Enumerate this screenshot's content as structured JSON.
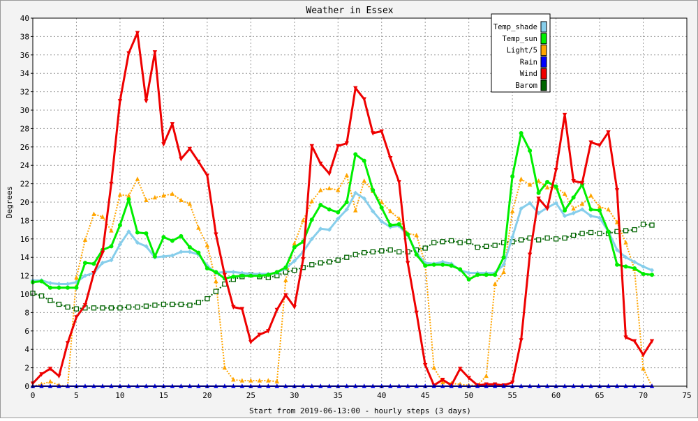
{
  "chart_data": {
    "type": "line",
    "title": "Weather in Essex",
    "xlabel": "Start from 2019-06-13:00 - hourly steps (3 days)",
    "ylabel": "Degrees",
    "xlim": [
      0,
      75
    ],
    "ylim": [
      0,
      40
    ],
    "xticks": [
      "0",
      "5",
      "10",
      "15",
      "20",
      "25",
      "30",
      "35",
      "40",
      "45",
      "50",
      "55",
      "60",
      "65",
      "70",
      "75"
    ],
    "yticks": [
      "0",
      "2",
      "4",
      "6",
      "8",
      "10",
      "12",
      "14",
      "16",
      "18",
      "20",
      "22",
      "24",
      "26",
      "28",
      "30",
      "32",
      "34",
      "36",
      "38",
      "40"
    ],
    "grid": true,
    "legend_position": "top-right",
    "series": [
      {
        "name": "Temp_shade",
        "color": "#87ceeb",
        "marker": "diamond",
        "dash": "solid",
        "width": 3,
        "values": [
          11.5,
          11.5,
          11.2,
          11.1,
          11.1,
          11.3,
          12.0,
          12.3,
          13.4,
          13.7,
          15.4,
          16.8,
          15.6,
          15.2,
          14.0,
          14.1,
          14.2,
          14.6,
          14.6,
          14.3,
          13.1,
          12.3,
          12.4,
          12.4,
          12.3,
          12.2,
          12.2,
          12.2,
          12.3,
          12.8,
          13.6,
          14.6,
          16.0,
          17.1,
          17.0,
          18.2,
          19.2,
          21.0,
          20.4,
          19.0,
          17.9,
          17.3,
          17.4,
          16.4,
          14.5,
          13.4,
          13.3,
          13.5,
          13.3,
          12.6,
          12.3,
          12.3,
          12.3,
          12.3,
          13.2,
          16.2,
          19.3,
          19.9,
          18.8,
          19.4,
          19.9,
          18.5,
          18.8,
          19.2,
          18.5,
          18.3,
          16.8,
          14.8,
          14.0,
          13.5,
          13.0,
          12.6
        ]
      },
      {
        "name": "Temp_sun",
        "color": "#00ee00",
        "marker": "circle",
        "dash": "solid",
        "width": 3,
        "values": [
          11.3,
          11.4,
          10.7,
          10.7,
          10.7,
          10.7,
          13.4,
          13.3,
          14.8,
          15.2,
          17.5,
          20.3,
          16.7,
          16.6,
          14.1,
          16.2,
          15.8,
          16.3,
          15.1,
          14.5,
          12.8,
          12.4,
          11.7,
          11.9,
          12.0,
          12.0,
          12.0,
          12.1,
          12.4,
          12.9,
          15.1,
          15.7,
          18.1,
          19.7,
          19.2,
          18.9,
          20.0,
          25.2,
          24.5,
          21.3,
          19.4,
          17.5,
          17.6,
          16.5,
          14.3,
          13.1,
          13.2,
          13.2,
          13.1,
          12.7,
          11.6,
          12.1,
          12.1,
          12.1,
          14.0,
          22.8,
          27.5,
          25.6,
          21.0,
          22.2,
          21.7,
          19.1,
          20.5,
          21.9,
          19.2,
          19.1,
          16.8,
          13.2,
          13.0,
          12.8,
          12.2,
          12.1
        ]
      },
      {
        "name": "Light/5",
        "color": "#ffa500",
        "marker": "triangle-up",
        "dash": "dotted",
        "width": 2,
        "values": [
          0.0,
          0.2,
          0.5,
          0.1,
          0.0,
          11.8,
          15.9,
          18.7,
          18.4,
          16.9,
          20.8,
          20.7,
          22.5,
          20.2,
          20.5,
          20.7,
          20.9,
          20.2,
          19.8,
          17.2,
          15.3,
          11.4,
          2.0,
          0.7,
          0.6,
          0.6,
          0.6,
          0.6,
          0.5,
          11.5,
          15.5,
          18.0,
          20.1,
          21.3,
          21.5,
          21.3,
          22.9,
          19.1,
          22.3,
          21.2,
          20.0,
          19.0,
          18.2,
          16.6,
          16.4,
          13.3,
          2.0,
          0.4,
          0.3,
          0.2,
          0.1,
          0.1,
          1.1,
          11.1,
          12.4,
          19.0,
          22.5,
          21.9,
          22.3,
          21.6,
          21.6,
          20.9,
          19.3,
          19.8,
          20.7,
          19.5,
          19.2,
          17.8,
          15.6,
          12.7,
          1.9,
          0.0
        ]
      },
      {
        "name": "Rain",
        "color": "#0000ff",
        "marker": "triangle-up",
        "dash": "solid",
        "width": 2,
        "values": [
          0,
          0,
          0,
          0,
          0,
          0,
          0,
          0,
          0,
          0,
          0,
          0,
          0,
          0,
          0,
          0,
          0,
          0,
          0,
          0,
          0,
          0,
          0,
          0,
          0,
          0,
          0,
          0,
          0,
          0,
          0,
          0,
          0,
          0,
          0,
          0,
          0,
          0,
          0,
          0,
          0,
          0,
          0,
          0,
          0,
          0,
          0,
          0,
          0,
          0,
          0,
          0,
          0,
          0,
          0,
          0,
          0,
          0,
          0,
          0,
          0,
          0,
          0,
          0,
          0,
          0,
          0,
          0,
          0,
          0,
          0,
          0
        ]
      },
      {
        "name": "Wind",
        "color": "#ee0000",
        "marker": "triangle-down",
        "dash": "solid",
        "width": 3,
        "values": [
          0.3,
          1.3,
          1.9,
          1.1,
          4.7,
          7.5,
          8.8,
          12.3,
          14.5,
          22.0,
          31.0,
          36.2,
          38.4,
          31.0,
          36.3,
          26.3,
          28.5,
          24.7,
          25.8,
          24.4,
          22.9,
          16.5,
          12.1,
          8.6,
          8.4,
          4.8,
          5.6,
          6.0,
          8.3,
          9.9,
          8.6,
          13.8,
          26.1,
          24.2,
          23.1,
          26.1,
          26.4,
          32.4,
          31.2,
          27.5,
          27.7,
          24.8,
          22.2,
          13.4,
          8.0,
          2.3,
          0.1,
          0.7,
          0.1,
          1.9,
          0.9,
          0.1,
          0.2,
          0.2,
          0.1,
          0.4,
          5.0,
          14.3,
          20.4,
          19.3,
          23.5,
          29.5,
          22.3,
          22.1,
          26.5,
          26.2,
          27.6,
          21.3,
          5.3,
          4.9,
          3.4,
          4.9
        ]
      },
      {
        "name": "Barom",
        "color": "#006400",
        "marker": "square",
        "dash": "dotted",
        "width": 2,
        "values": [
          10.1,
          9.8,
          9.3,
          8.9,
          8.6,
          8.4,
          8.5,
          8.5,
          8.5,
          8.5,
          8.5,
          8.6,
          8.6,
          8.7,
          8.8,
          8.9,
          8.9,
          8.9,
          8.8,
          9.1,
          9.5,
          10.3,
          11.1,
          11.6,
          11.9,
          12.1,
          11.9,
          11.8,
          12.0,
          12.4,
          12.6,
          12.9,
          13.2,
          13.4,
          13.5,
          13.7,
          14.0,
          14.3,
          14.5,
          14.6,
          14.7,
          14.8,
          14.6,
          14.6,
          14.8,
          15.0,
          15.6,
          15.7,
          15.8,
          15.6,
          15.7,
          15.1,
          15.2,
          15.3,
          15.6,
          15.7,
          15.9,
          16.1,
          15.9,
          16.1,
          16.0,
          16.1,
          16.4,
          16.6,
          16.7,
          16.6,
          16.6,
          16.8,
          16.9,
          17.0,
          17.6,
          17.5
        ]
      }
    ]
  }
}
